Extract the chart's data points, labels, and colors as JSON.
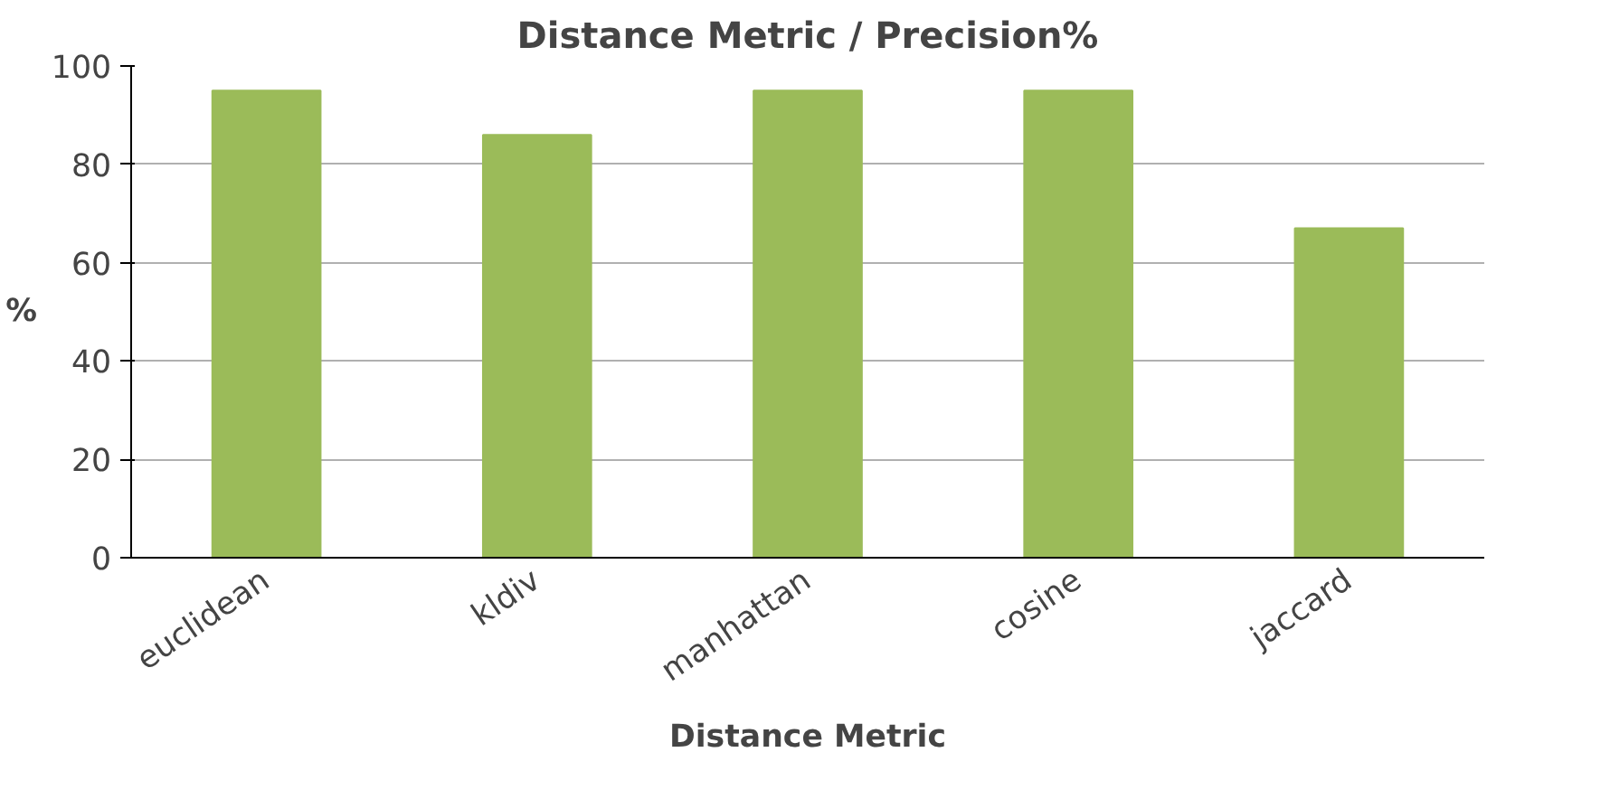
{
  "chart_data": {
    "type": "bar",
    "title": "Distance Metric / Precision%",
    "xlabel": "Distance Metric",
    "ylabel": "%",
    "categories": [
      "euclidean",
      "kldiv",
      "manhattan",
      "cosine",
      "jaccard"
    ],
    "values": [
      95,
      86,
      95,
      95,
      67
    ],
    "color": "#9bbb59",
    "ylim": [
      0,
      100
    ],
    "yticks": [
      0,
      20,
      40,
      60,
      80,
      100
    ],
    "grid": "y"
  }
}
